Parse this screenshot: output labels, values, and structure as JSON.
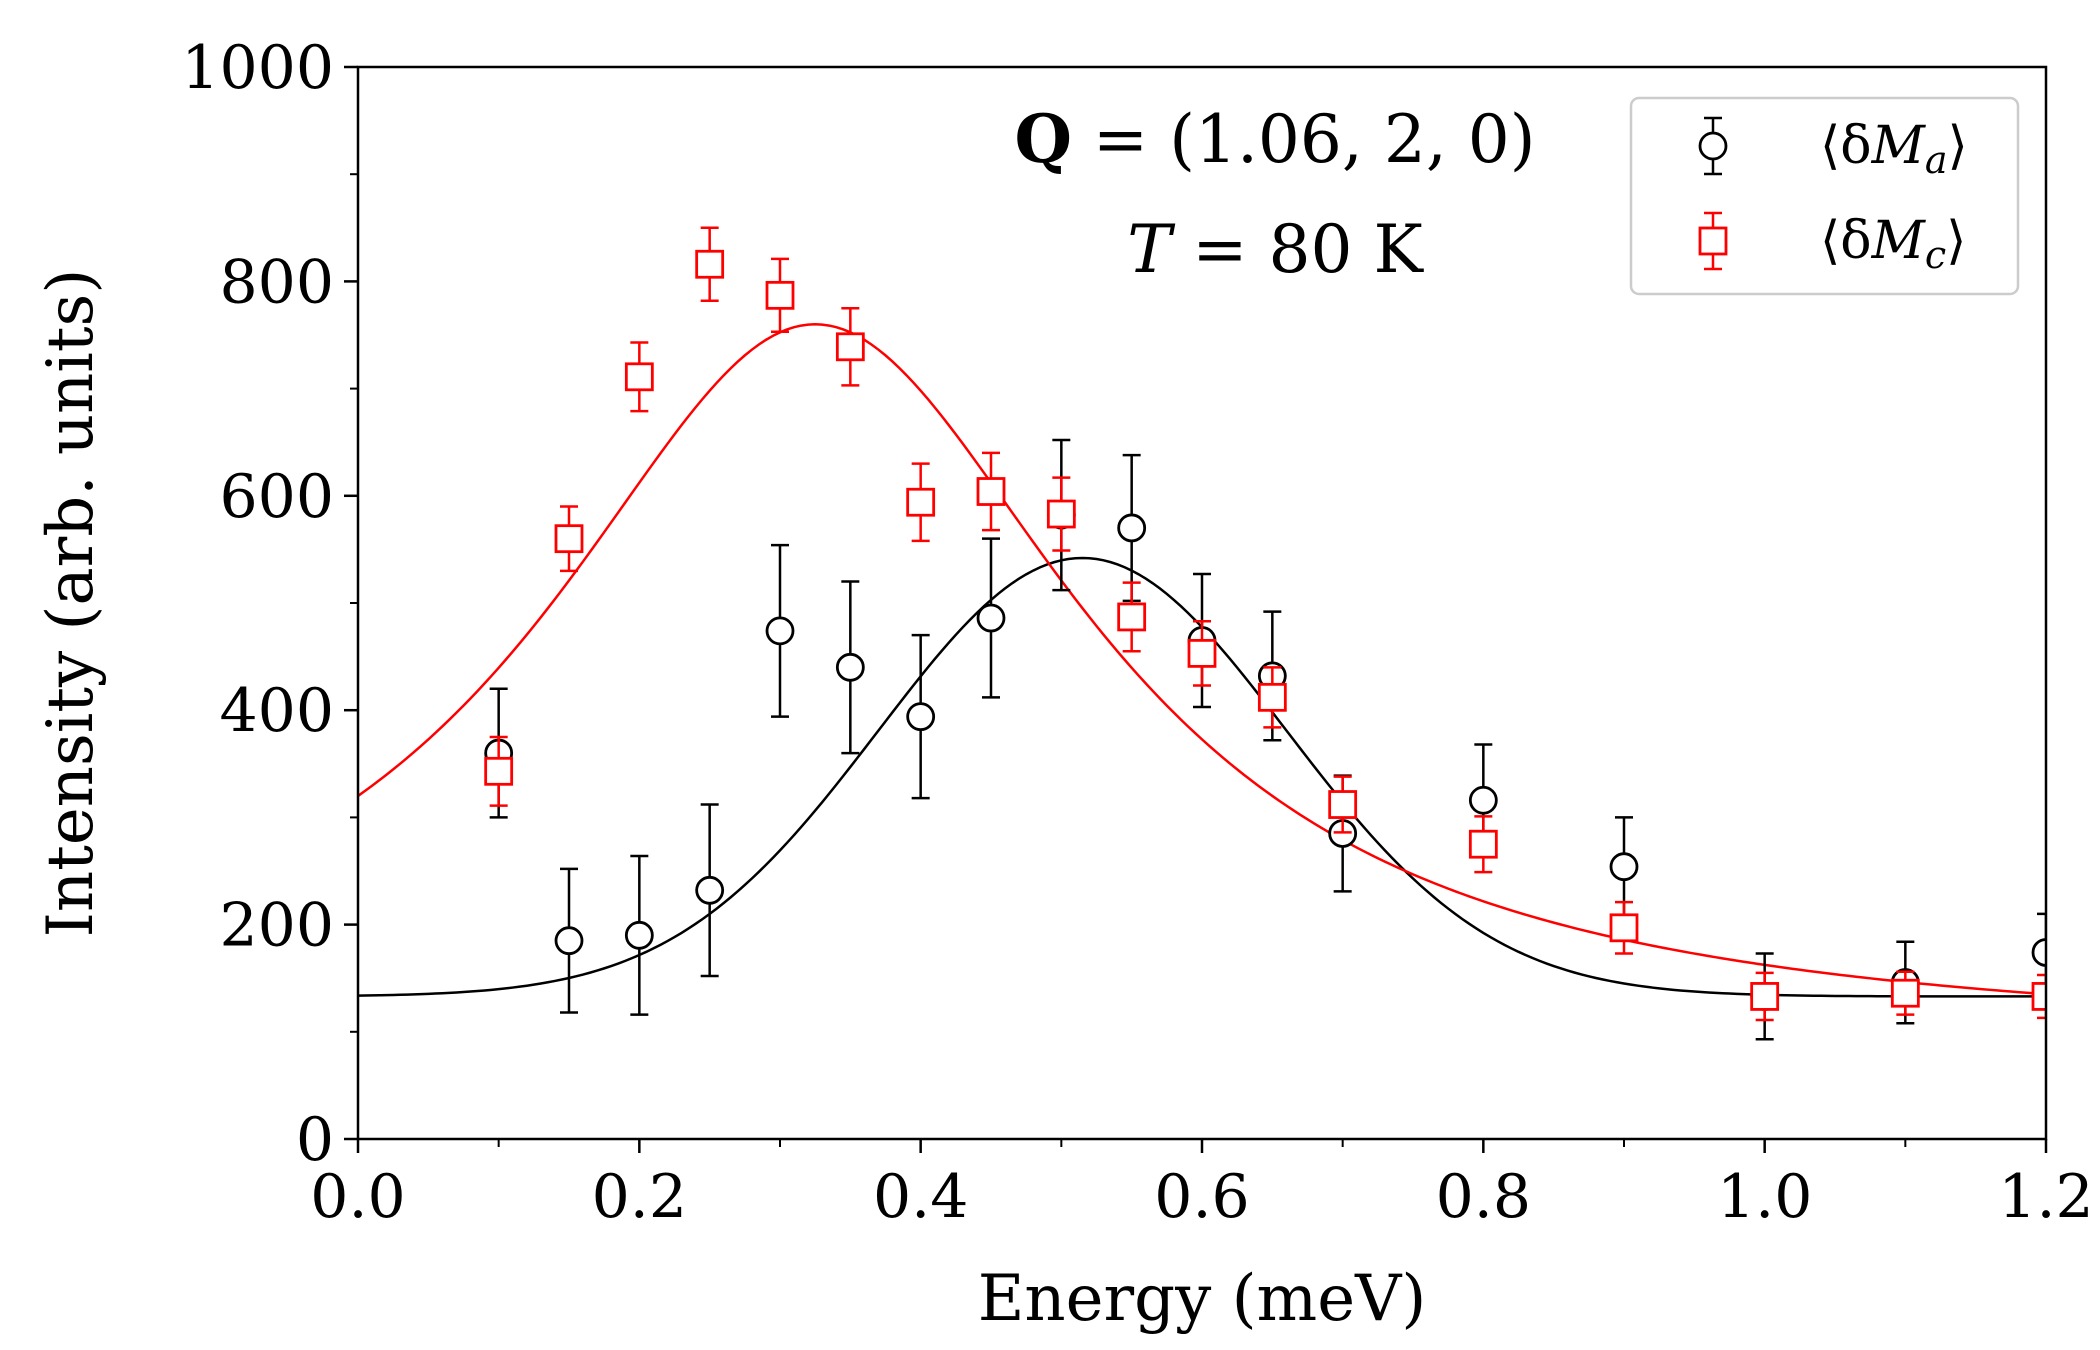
{
  "chart_data": {
    "type": "scatter",
    "title": "",
    "xlabel": "Energy (meV)",
    "ylabel": "Intensity (arb. units)",
    "xlim": [
      0.0,
      1.2
    ],
    "ylim": [
      0,
      1000
    ],
    "x_ticks": [
      0.0,
      0.2,
      0.4,
      0.6,
      0.8,
      1.0,
      1.2
    ],
    "x_tick_labels": [
      "0.0",
      "0.2",
      "0.4",
      "0.6",
      "0.8",
      "1.0",
      "1.2"
    ],
    "y_ticks": [
      0,
      200,
      400,
      600,
      800,
      1000
    ],
    "y_tick_labels": [
      "0",
      "200",
      "400",
      "600",
      "800",
      "1000"
    ],
    "grid": false,
    "annotations": [
      {
        "bold": "Q",
        "rest": " = (1.06, 2, 0)"
      },
      {
        "italic": "T",
        "rest": " = 80 K"
      }
    ],
    "legend": {
      "position": "top-right"
    },
    "series": [
      {
        "name": "⟨δMa⟩",
        "legend_label": {
          "prefix": "⟨δ",
          "var": "M",
          "sub": "a",
          "suffix": "⟩"
        },
        "color": "#000000",
        "marker": "circle",
        "x": [
          0.1,
          0.15,
          0.2,
          0.25,
          0.3,
          0.35,
          0.4,
          0.45,
          0.5,
          0.55,
          0.6,
          0.65,
          0.7,
          0.8,
          0.9,
          1.0,
          1.1,
          1.2
        ],
        "y": [
          360,
          185,
          190,
          232,
          474,
          440,
          394,
          486,
          582,
          570,
          465,
          432,
          285,
          316,
          254,
          133,
          146,
          174
        ],
        "yerr": [
          60,
          67,
          74,
          80,
          80,
          80,
          76,
          74,
          70,
          68,
          62,
          60,
          54,
          52,
          46,
          40,
          38,
          36
        ],
        "fit": {
          "model": "gaussian",
          "baseline": 133,
          "amplitude": 409,
          "center": 0.515,
          "sigma": 0.145
        }
      },
      {
        "name": "⟨δMc⟩",
        "legend_label": {
          "prefix": "⟨δ",
          "var": "M",
          "sub": "c",
          "suffix": "⟩"
        },
        "color": "#ff0000",
        "marker": "square",
        "x": [
          0.1,
          0.15,
          0.2,
          0.25,
          0.3,
          0.35,
          0.4,
          0.45,
          0.5,
          0.55,
          0.6,
          0.65,
          0.7,
          0.8,
          0.9,
          1.0,
          1.1,
          1.2
        ],
        "y": [
          343,
          560,
          711,
          816,
          787,
          739,
          594,
          604,
          583,
          487,
          453,
          412,
          312,
          275,
          197,
          133,
          136,
          133
        ],
        "yerr": [
          32,
          30,
          32,
          34,
          34,
          36,
          36,
          36,
          34,
          32,
          30,
          28,
          26,
          26,
          24,
          22,
          20,
          20
        ],
        "fit": {
          "model": "lorentzian",
          "baseline": 90,
          "amplitude": 670,
          "center": 0.325,
          "gamma": 0.235
        }
      }
    ]
  }
}
